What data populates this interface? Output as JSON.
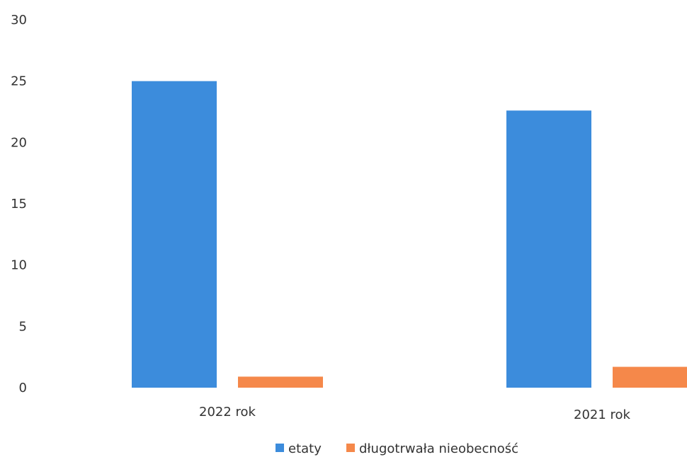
{
  "chart_data": {
    "type": "bar",
    "categories": [
      "2022 rok",
      "2021 rok"
    ],
    "series": [
      {
        "name": "etaty",
        "values": [
          25,
          22.6
        ],
        "color": "#3C8CDC"
      },
      {
        "name": "długotrwała nieobecność",
        "values": [
          0.9,
          1.7
        ],
        "color": "#F5884A"
      }
    ],
    "y_ticks": [
      "0",
      "5",
      "10",
      "15",
      "20",
      "25",
      "30"
    ],
    "ylim": [
      0,
      30
    ],
    "grid": false,
    "legend_position": "bottom"
  }
}
